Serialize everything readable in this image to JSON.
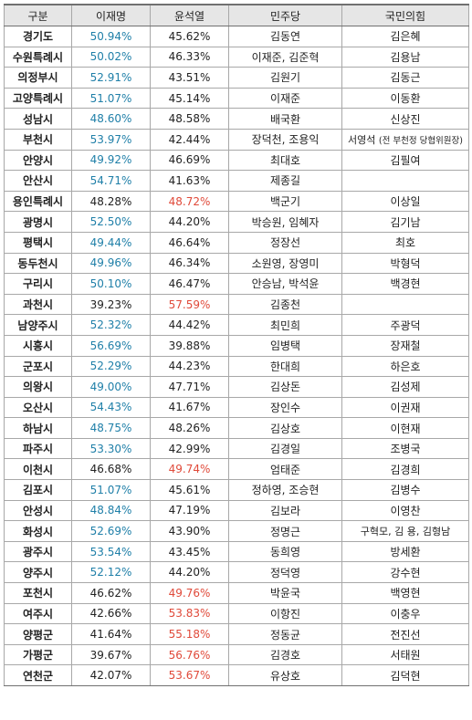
{
  "headers": [
    "구분",
    "이재명",
    "윤석열",
    "민주당",
    "국민의힘"
  ],
  "rows": [
    {
      "region": "경기도",
      "lee": "50.94%",
      "yoon": "45.62%",
      "dem": "김동연",
      "ppp": "김은혜",
      "ppp_note": "",
      "winner": "lee"
    },
    {
      "region": "수원특례시",
      "lee": "50.02%",
      "yoon": "46.33%",
      "dem": "이재준, 김준혁",
      "ppp": "김용남",
      "ppp_note": "",
      "winner": "lee"
    },
    {
      "region": "의정부시",
      "lee": "52.91%",
      "yoon": "43.51%",
      "dem": "김원기",
      "ppp": "김동근",
      "ppp_note": "",
      "winner": "lee"
    },
    {
      "region": "고양특례시",
      "lee": "51.07%",
      "yoon": "45.14%",
      "dem": "이재준",
      "ppp": "이동환",
      "ppp_note": "",
      "winner": "lee"
    },
    {
      "region": "성남시",
      "lee": "48.60%",
      "yoon": "48.58%",
      "dem": "배국환",
      "ppp": "신상진",
      "ppp_note": "",
      "winner": "lee"
    },
    {
      "region": "부천시",
      "lee": "53.97%",
      "yoon": "42.44%",
      "dem": "장덕천, 조용익",
      "ppp": "서영석",
      "ppp_note": "(전 부천정 당협위원장)",
      "winner": "lee"
    },
    {
      "region": "안양시",
      "lee": "49.92%",
      "yoon": "46.69%",
      "dem": "최대호",
      "ppp": "김필여",
      "ppp_note": "",
      "winner": "lee"
    },
    {
      "region": "안산시",
      "lee": "54.71%",
      "yoon": "41.63%",
      "dem": "제종길",
      "ppp": "",
      "ppp_note": "",
      "winner": "lee"
    },
    {
      "region": "용인특례시",
      "lee": "48.28%",
      "yoon": "48.72%",
      "dem": "백군기",
      "ppp": "이상일",
      "ppp_note": "",
      "winner": "yoon"
    },
    {
      "region": "광명시",
      "lee": "52.50%",
      "yoon": "44.20%",
      "dem": "박승원, 임혜자",
      "ppp": "김기남",
      "ppp_note": "",
      "winner": "lee"
    },
    {
      "region": "평택시",
      "lee": "49.44%",
      "yoon": "46.64%",
      "dem": "정장선",
      "ppp": "최호",
      "ppp_note": "",
      "winner": "lee"
    },
    {
      "region": "동두천시",
      "lee": "49.96%",
      "yoon": "46.34%",
      "dem": "소원영, 장영미",
      "ppp": "박형덕",
      "ppp_note": "",
      "winner": "lee"
    },
    {
      "region": "구리시",
      "lee": "50.10%",
      "yoon": "46.47%",
      "dem": "안승남, 박석윤",
      "ppp": "백경현",
      "ppp_note": "",
      "winner": "lee"
    },
    {
      "region": "과천시",
      "lee": "39.23%",
      "yoon": "57.59%",
      "dem": "김종천",
      "ppp": "",
      "ppp_note": "",
      "winner": "yoon"
    },
    {
      "region": "남양주시",
      "lee": "52.32%",
      "yoon": "44.42%",
      "dem": "최민희",
      "ppp": "주광덕",
      "ppp_note": "",
      "winner": "lee"
    },
    {
      "region": "시흥시",
      "lee": "56.69%",
      "yoon": "39.88%",
      "dem": "임병택",
      "ppp": "장재철",
      "ppp_note": "",
      "winner": "lee"
    },
    {
      "region": "군포시",
      "lee": "52.29%",
      "yoon": "44.23%",
      "dem": "한대희",
      "ppp": "하은호",
      "ppp_note": "",
      "winner": "lee"
    },
    {
      "region": "의왕시",
      "lee": "49.00%",
      "yoon": "47.71%",
      "dem": "김상돈",
      "ppp": "김성제",
      "ppp_note": "",
      "winner": "lee"
    },
    {
      "region": "오산시",
      "lee": "54.43%",
      "yoon": "41.67%",
      "dem": "장인수",
      "ppp": "이권재",
      "ppp_note": "",
      "winner": "lee"
    },
    {
      "region": "하남시",
      "lee": "48.75%",
      "yoon": "48.26%",
      "dem": "김상호",
      "ppp": "이현재",
      "ppp_note": "",
      "winner": "lee"
    },
    {
      "region": "파주시",
      "lee": "53.30%",
      "yoon": "42.99%",
      "dem": "김경일",
      "ppp": "조병국",
      "ppp_note": "",
      "winner": "lee"
    },
    {
      "region": "이천시",
      "lee": "46.68%",
      "yoon": "49.74%",
      "dem": "엄태준",
      "ppp": "김경희",
      "ppp_note": "",
      "winner": "yoon"
    },
    {
      "region": "김포시",
      "lee": "51.07%",
      "yoon": "45.61%",
      "dem": "정하영, 조승현",
      "ppp": "김병수",
      "ppp_note": "",
      "winner": "lee"
    },
    {
      "region": "안성시",
      "lee": "48.84%",
      "yoon": "47.19%",
      "dem": "김보라",
      "ppp": "이영찬",
      "ppp_note": "",
      "winner": "lee"
    },
    {
      "region": "화성시",
      "lee": "52.69%",
      "yoon": "43.90%",
      "dem": "정명근",
      "ppp": "구혁모, 김 용, 김형남",
      "ppp_note": "",
      "winner": "lee"
    },
    {
      "region": "광주시",
      "lee": "53.54%",
      "yoon": "43.45%",
      "dem": "동희영",
      "ppp": "방세환",
      "ppp_note": "",
      "winner": "lee"
    },
    {
      "region": "양주시",
      "lee": "52.12%",
      "yoon": "44.20%",
      "dem": "정덕영",
      "ppp": "강수현",
      "ppp_note": "",
      "winner": "lee"
    },
    {
      "region": "포천시",
      "lee": "46.62%",
      "yoon": "49.76%",
      "dem": "박윤국",
      "ppp": "백영현",
      "ppp_note": "",
      "winner": "yoon"
    },
    {
      "region": "여주시",
      "lee": "42.66%",
      "yoon": "53.83%",
      "dem": "이항진",
      "ppp": "이충우",
      "ppp_note": "",
      "winner": "yoon"
    },
    {
      "region": "양평군",
      "lee": "41.64%",
      "yoon": "55.18%",
      "dem": "정동균",
      "ppp": "전진선",
      "ppp_note": "",
      "winner": "yoon"
    },
    {
      "region": "가평군",
      "lee": "39.67%",
      "yoon": "56.76%",
      "dem": "김경호",
      "ppp": "서태원",
      "ppp_note": "",
      "winner": "yoon"
    },
    {
      "region": "연천군",
      "lee": "42.07%",
      "yoon": "53.67%",
      "dem": "유상호",
      "ppp": "김덕현",
      "ppp_note": "",
      "winner": "yoon"
    }
  ],
  "colors": {
    "lee_win": "#1f7fa8",
    "yoon_win": "#e04a3a",
    "header_bg": "#e6e6e6",
    "text": "#222222",
    "border": "#a8a8a8"
  }
}
